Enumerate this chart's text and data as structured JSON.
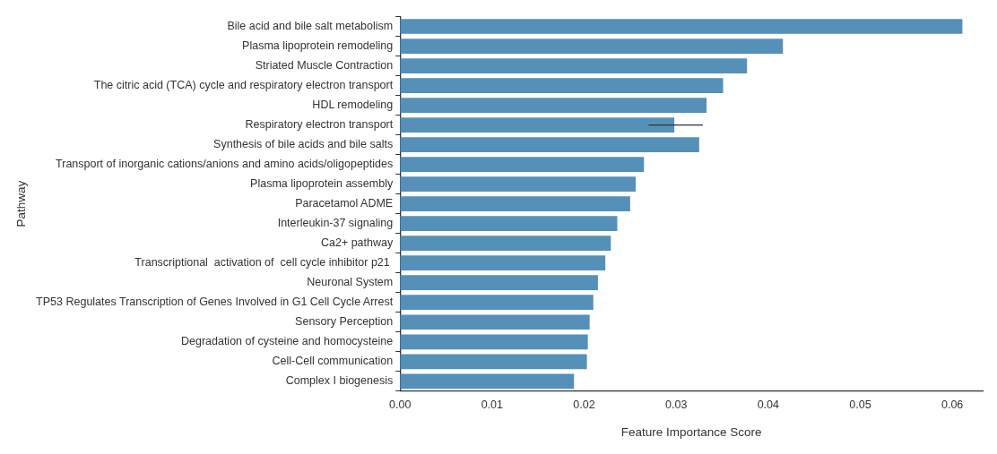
{
  "chart_data": {
    "type": "bar",
    "orientation": "horizontal",
    "xlabel": "Feature Importance Score",
    "ylabel": "Pathway",
    "categories": [
      "Bile acid and bile salt metabolism",
      "Plasma lipoprotein remodeling",
      "Striated Muscle Contraction",
      "The citric acid (TCA) cycle and respiratory electron transport",
      "HDL remodeling",
      "Respiratory electron transport",
      "Synthesis of bile acids and bile salts",
      "Transport of inorganic cations/anions and amino acids/oligopeptides",
      "Plasma lipoprotein assembly",
      "Paracetamol ADME",
      "Interleukin-37 signaling",
      "Ca2+ pathway",
      "Transcriptional  activation of  cell cycle inhibitor p21 ",
      "Neuronal System",
      "TP53 Regulates Transcription of Genes Involved in G1 Cell Cycle Arrest",
      "Sensory Perception",
      "Degradation of cysteine and homocysteine",
      "Cell-Cell communication",
      "Complex I biogenesis"
    ],
    "values": [
      0.0611,
      0.0416,
      0.0377,
      0.0351,
      0.0333,
      0.0298,
      0.0325,
      0.0265,
      0.0256,
      0.025,
      0.0236,
      0.0229,
      0.0223,
      0.0215,
      0.021,
      0.0206,
      0.0204,
      0.0203,
      0.0189
    ],
    "errors": [
      null,
      null,
      null,
      null,
      null,
      [
        0.027,
        0.0329
      ],
      null,
      null,
      null,
      null,
      null,
      null,
      null,
      null,
      null,
      null,
      null,
      null,
      null
    ],
    "color": "#5590b9",
    "xlim": [
      0,
      0.0633
    ],
    "xticks": [
      {
        "value": 0,
        "label": "0.00"
      },
      {
        "value": 0.01,
        "label": "0.01"
      },
      {
        "value": 0.02,
        "label": "0.02"
      },
      {
        "value": 0.03,
        "label": "0.03"
      },
      {
        "value": 0.04,
        "label": "0.04"
      },
      {
        "value": 0.05,
        "label": "0.05"
      },
      {
        "value": 0.06,
        "label": "0.06"
      }
    ],
    "grid": false,
    "legend": false
  }
}
